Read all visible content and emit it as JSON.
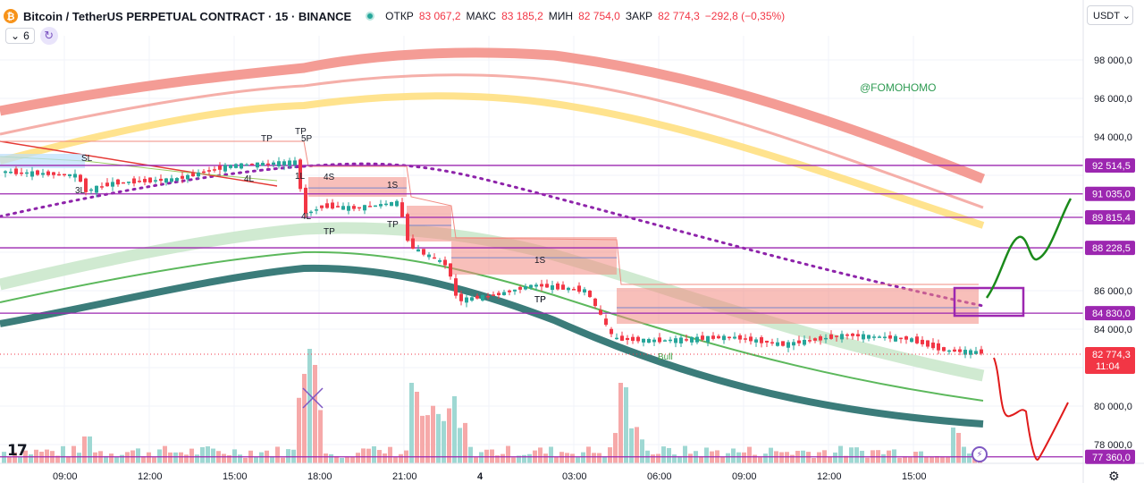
{
  "header": {
    "logo_glyph": "₿",
    "title": "Bitcoin / TetherUS PERPETUAL CONTRACT · 15 · BINANCE",
    "ohlc": [
      {
        "label": "ОТКР",
        "value": "83 067,2"
      },
      {
        "label": "МАКС",
        "value": "83 185,2"
      },
      {
        "label": "МИН",
        "value": "82 754,0"
      },
      {
        "label": "ЗАКР",
        "value": "82 774,3"
      }
    ],
    "change": "−292,8 (−0,35%)",
    "status_color": "#26a69a"
  },
  "controls": {
    "indicators_toggle": "⌄",
    "indicators_count": "6",
    "sync_icon": "↻"
  },
  "currency": "USDT ⌄",
  "watermark": "@FOMOHOMO",
  "tv_logo": "17",
  "settings_icon": "⚙",
  "alert_icon": "⚡",
  "colors": {
    "up": "#26a69a",
    "down": "#f23645",
    "level_line": "#9c27b0",
    "ema_fast": "#f28b82",
    "ema_mid": "#ffe082",
    "ema_slow": "#3b7c7a",
    "green_band": "#c8e6c9"
  },
  "chart_data": {
    "type": "candlestick",
    "y_axis_ticks": [
      "98 000,0",
      "96 000,0",
      "94 000,0",
      "86 000,0",
      "84 000,0",
      "80 000,0",
      "78 000,0"
    ],
    "x_axis_ticks": [
      "09:00",
      "12:00",
      "15:00",
      "18:00",
      "21:00",
      "4",
      "03:00",
      "06:00",
      "09:00",
      "12:00",
      "15:00"
    ],
    "price_levels": [
      {
        "value": 92514.5,
        "label": "92 514,5"
      },
      {
        "value": 91035.0,
        "label": "91 035,0"
      },
      {
        "value": 89815.4,
        "label": "89 815,4"
      },
      {
        "value": 88228.5,
        "label": "88 228,5"
      },
      {
        "value": 84830.0,
        "label": "84 830,0"
      },
      {
        "value": 77360.0,
        "label": "77 360,0"
      }
    ],
    "current_price": {
      "label": "82 774,3",
      "countdown": "11:04"
    },
    "signal_labels": [
      "SL",
      "3L",
      "4L",
      "1L",
      "TP",
      "TP",
      "5P",
      "4S",
      "4L",
      "TP",
      "1S",
      "TP",
      "TP",
      "1S",
      "TP",
      "Bull"
    ]
  }
}
